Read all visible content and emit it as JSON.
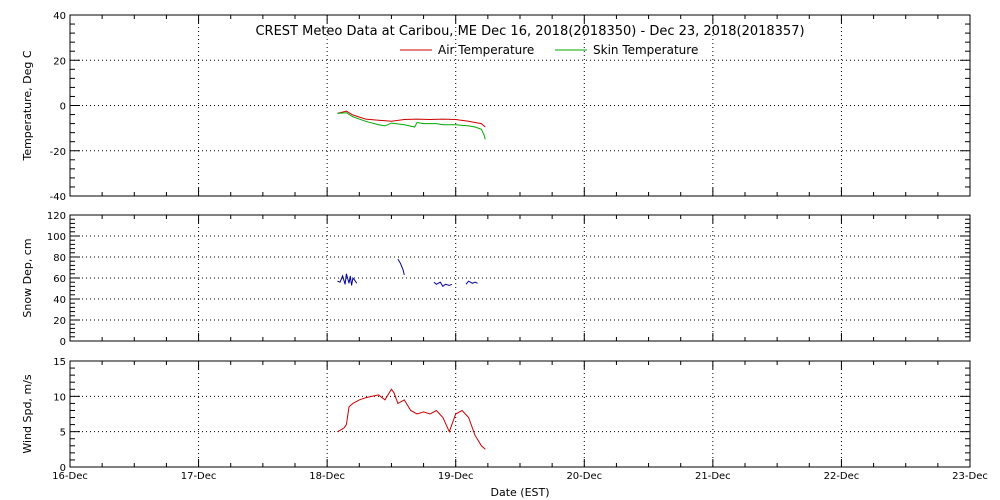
{
  "chart_data": [
    {
      "type": "line",
      "title": "CREST Meteo Data at Caribou, ME   Dec 16, 2018(2018350) - Dec 23, 2018(2018357)",
      "ylabel": "Temperature, Deg C",
      "ylim": [
        -40,
        40
      ],
      "yticks": [
        -40,
        -20,
        0,
        20,
        40
      ],
      "grid": true,
      "legend": "top-center",
      "series": [
        {
          "name": "Air Temperature",
          "color": "#cc0000",
          "x": [
            2.08,
            2.1,
            2.15,
            2.2,
            2.3,
            2.4,
            2.5,
            2.6,
            2.7,
            2.8,
            2.9,
            3.0,
            3.1,
            3.15,
            3.2,
            3.23
          ],
          "y": [
            -3.5,
            -3.2,
            -2.5,
            -4.2,
            -6,
            -6.5,
            -7,
            -6.2,
            -6,
            -6.2,
            -6,
            -6.2,
            -7,
            -7.5,
            -8,
            -9.5
          ]
        },
        {
          "name": "Skin Temperature",
          "color": "#00aa00",
          "x": [
            2.08,
            2.15,
            2.2,
            2.3,
            2.4,
            2.45,
            2.5,
            2.6,
            2.68,
            2.7,
            2.75,
            2.85,
            2.9,
            3.0,
            3.1,
            3.15,
            3.2,
            3.22,
            3.23
          ],
          "y": [
            -3.5,
            -3.2,
            -5,
            -7,
            -8.5,
            -9,
            -7.8,
            -8.5,
            -9.5,
            -7.5,
            -8,
            -8,
            -8.5,
            -8.5,
            -9,
            -9.5,
            -10.5,
            -13,
            -15
          ]
        }
      ]
    },
    {
      "type": "line",
      "ylabel": "Snow Dep, cm",
      "ylim": [
        0,
        120
      ],
      "yticks": [
        0,
        20,
        40,
        60,
        80,
        100,
        120
      ],
      "grid": true,
      "series": [
        {
          "color": "#000099",
          "x": [
            2.08,
            2.1,
            2.12,
            2.14,
            2.15,
            2.17,
            2.18,
            2.19,
            2.2,
            2.22,
            2.23
          ],
          "y": [
            57,
            56,
            62,
            54,
            64,
            55,
            62,
            53,
            60,
            57,
            55
          ]
        },
        {
          "color": "#000099",
          "x": [
            2.55,
            2.57,
            2.59,
            2.6
          ],
          "y": [
            78,
            74,
            68,
            63
          ]
        },
        {
          "color": "#000099",
          "x": [
            2.83,
            2.85,
            2.88,
            2.9,
            2.92,
            2.95,
            2.97
          ],
          "y": [
            56,
            54,
            56,
            52,
            54,
            53,
            54
          ]
        },
        {
          "color": "#000099",
          "x": [
            3.08,
            3.1,
            3.13,
            3.15,
            3.17
          ],
          "y": [
            54,
            57,
            55,
            56,
            55
          ]
        }
      ]
    },
    {
      "type": "line",
      "xlabel": "Date (EST)",
      "ylabel": "Wind Spd, m/s",
      "ylim": [
        0,
        15
      ],
      "yticks": [
        0,
        5,
        10,
        15
      ],
      "categories": [
        "16-Dec",
        "17-Dec",
        "18-Dec",
        "19-Dec",
        "20-Dec",
        "21-Dec",
        "22-Dec",
        "23-Dec"
      ],
      "xlim": [
        0,
        7
      ],
      "grid": true,
      "series": [
        {
          "color": "#cc0000",
          "x": [
            2.08,
            2.1,
            2.13,
            2.15,
            2.17,
            2.2,
            2.25,
            2.3,
            2.35,
            2.4,
            2.45,
            2.5,
            2.52,
            2.55,
            2.6,
            2.65,
            2.7,
            2.75,
            2.8,
            2.85,
            2.9,
            2.95,
            3.0,
            3.05,
            3.1,
            3.15,
            3.2,
            3.23
          ],
          "y": [
            5,
            5.2,
            5.5,
            6,
            8.5,
            9,
            9.5,
            9.8,
            10,
            10.2,
            9.5,
            11,
            10.5,
            9,
            9.5,
            8,
            7.5,
            7.8,
            7.5,
            8,
            7,
            5,
            7.5,
            8,
            7,
            4.5,
            3,
            2.5
          ]
        }
      ]
    }
  ]
}
